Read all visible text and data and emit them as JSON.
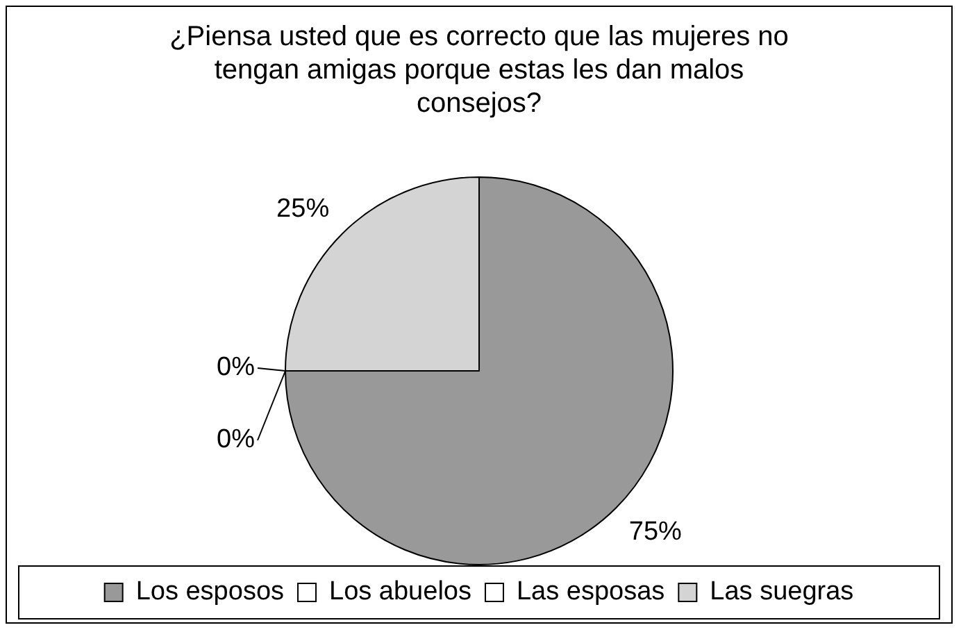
{
  "chart_data": {
    "type": "pie",
    "title": "¿Piensa usted que es correcto que las mujeres no tengan amigas porque estas les dan malos consejos?",
    "categories": [
      "Los esposos",
      "Los abuelos",
      "Las esposas",
      "Las suegras"
    ],
    "values": [
      75,
      0,
      0,
      25
    ],
    "colors": [
      "#999999",
      "#ffffff",
      "#ffffff",
      "#d4d4d4"
    ],
    "value_labels": [
      "75%",
      "0%",
      "0%",
      "25%"
    ],
    "legend": "bottom"
  }
}
